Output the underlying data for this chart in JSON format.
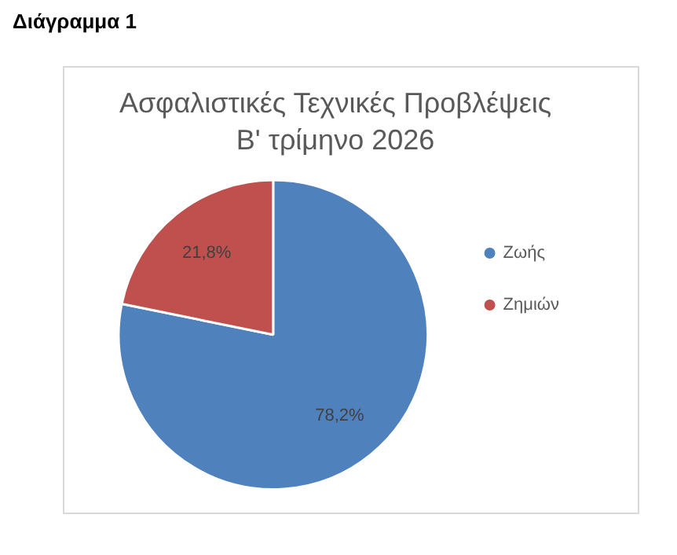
{
  "chart_data": {
    "type": "pie",
    "title": "Ασφαλιστικές Τεχνικές Προβλέψεις\nΒ' τρίμηνο 2026",
    "annotations": [
      "Διάγραμμα 1"
    ],
    "categories": [
      "Ζωής",
      "Ζημιών"
    ],
    "values": [
      78.2,
      21.8
    ],
    "colors": [
      "#4f81bd",
      "#c0504d"
    ],
    "value_labels": [
      "78,2%",
      "21,8%"
    ],
    "legend": "right"
  }
}
